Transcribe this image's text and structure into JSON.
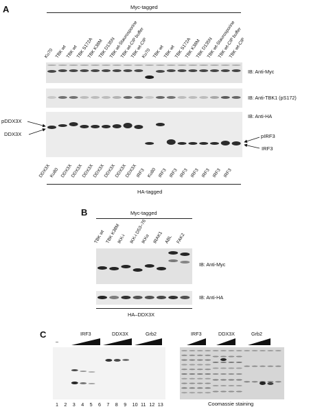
{
  "panel_a": {
    "letter": "A",
    "top_group": "Myc-tagged",
    "bottom_group": "HA-tagged",
    "lane_labels_top": [
      "Ku70",
      "TBK wt",
      "TBK wt",
      "TBK S172A",
      "TBK K38M",
      "TBK D135N",
      "TBK wt-Staurosporine",
      "TBK wt-CIP buffer",
      "TBK wt-CIP",
      "Ku70",
      "TBK wt",
      "TBK wt",
      "TBK S172A",
      "TBK K38M",
      "TBK D135N",
      "TBK wt-Staurosporine",
      "TBK wt-CIP buffer",
      "TBK wt-CIP"
    ],
    "lane_labels_bottom": [
      "DDX3X",
      "Ku80",
      "DDX3X",
      "DDX3X",
      "DDX3X",
      "DDX3X",
      "DDX3X",
      "DDX3X",
      "DDX3X",
      "IRF3",
      "Ku80",
      "IRF3",
      "IRF3",
      "IRF3",
      "IRF3",
      "IRF3",
      "IRF3",
      "IRF3"
    ],
    "blot_labels": [
      "IB: Anti-Myc",
      "IB: Anti-TBK1 (pS172)",
      "IB: Anti-HA"
    ],
    "left_markers": [
      "pDDX3X",
      "DDX3X"
    ],
    "right_markers": [
      "pIRF3",
      "IRF3"
    ]
  },
  "panel_b": {
    "letter": "B",
    "top_group": "Myc-tagged",
    "lane_labels": [
      "TBK wt",
      "TBK K38M",
      "IKK-i",
      "IKK-i D53–76",
      "IKKα",
      "IRAK1",
      "ABL",
      "FAK2"
    ],
    "blot_labels": [
      "IB: Anti-Myc",
      "IB: Anti-HA"
    ],
    "bottom_group": "HA–DDX3X"
  },
  "panel_c": {
    "letter": "C",
    "minus": "–",
    "gel_groups": [
      "IRF3",
      "DDX3X",
      "Grb2"
    ],
    "coomassie_groups": [
      "IRF3",
      "DDX3X",
      "Grb2"
    ],
    "lane_numbers": [
      "1",
      "2",
      "3",
      "4",
      "5",
      "6",
      "7",
      "8",
      "9",
      "10",
      "11",
      "12",
      "13"
    ],
    "coomassie_label": "Coomassie staining"
  }
}
